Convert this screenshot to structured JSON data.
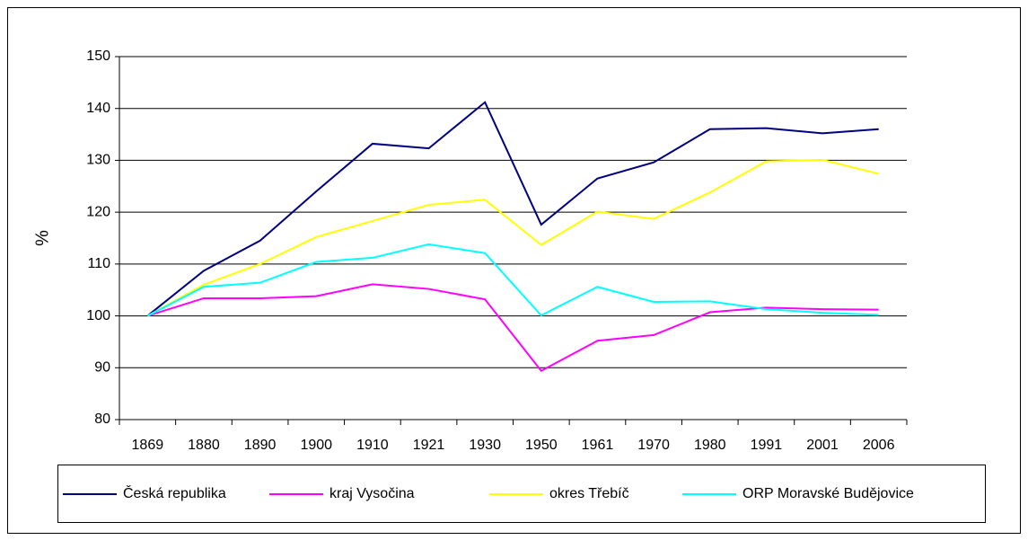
{
  "chart_data": {
    "type": "line",
    "ylabel": "%",
    "categories": [
      "1869",
      "1880",
      "1890",
      "1900",
      "1910",
      "1921",
      "1930",
      "1950",
      "1961",
      "1970",
      "1980",
      "1991",
      "2001",
      "2006"
    ],
    "series": [
      {
        "name": "Česká republika",
        "color": "#000080",
        "values": [
          100,
          108.7,
          114.5,
          124,
          133.2,
          132.3,
          141.2,
          117.6,
          126.5,
          129.6,
          136,
          136.2,
          135.2,
          136
        ]
      },
      {
        "name": "kraj Vysočina",
        "color": "#ff00ff",
        "values": [
          100,
          103.4,
          103.4,
          103.8,
          106.1,
          105.2,
          103.2,
          89.4,
          95.2,
          96.3,
          100.7,
          101.6,
          101.3,
          101.2
        ]
      },
      {
        "name": "okres Třebíč",
        "color": "#ffff00",
        "values": [
          100,
          106,
          110,
          115.2,
          118.3,
          121.4,
          122.4,
          113.7,
          120.1,
          118.7,
          123.8,
          129.8,
          130.1,
          127.4
        ]
      },
      {
        "name": "ORP Moravské Budějovice",
        "color": "#00ffff",
        "values": [
          100,
          105.6,
          106.4,
          110.4,
          111.2,
          113.8,
          112.1,
          100.1,
          105.6,
          102.7,
          102.8,
          101.3,
          100.6,
          100.2
        ]
      }
    ],
    "ylim": [
      80,
      150
    ],
    "yticks": [
      80,
      90,
      100,
      110,
      120,
      130,
      140,
      150
    ],
    "grid": true,
    "legend": "bottom"
  }
}
